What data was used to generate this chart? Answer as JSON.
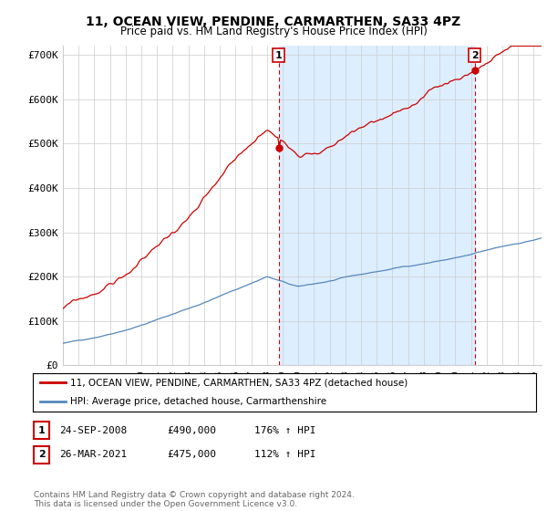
{
  "title": "11, OCEAN VIEW, PENDINE, CARMARTHEN, SA33 4PZ",
  "subtitle": "Price paid vs. HM Land Registry's House Price Index (HPI)",
  "ylim": [
    0,
    720000
  ],
  "yticks": [
    0,
    100000,
    200000,
    300000,
    400000,
    500000,
    600000,
    700000
  ],
  "ytick_labels": [
    "£0",
    "£100K",
    "£200K",
    "£300K",
    "£400K",
    "£500K",
    "£600K",
    "£700K"
  ],
  "red_color": "#cc0000",
  "blue_color": "#5588bb",
  "shade_color": "#ddeeff",
  "legend_line1": "11, OCEAN VIEW, PENDINE, CARMARTHEN, SA33 4PZ (detached house)",
  "legend_line2": "HPI: Average price, detached house, Carmarthenshire",
  "table_row1": [
    "1",
    "24-SEP-2008",
    "£490,000",
    "176% ↑ HPI"
  ],
  "table_row2": [
    "2",
    "26-MAR-2021",
    "£475,000",
    "112% ↑ HPI"
  ],
  "footnote": "Contains HM Land Registry data © Crown copyright and database right 2024.\nThis data is licensed under the Open Government Licence v3.0.",
  "background_color": "#ffffff",
  "grid_color": "#cccccc",
  "title_fontsize": 10,
  "subtitle_fontsize": 9,
  "sale_date1": 2008.75,
  "sale_date2": 2021.25,
  "sale_price1": 490000,
  "sale_price2": 475000,
  "xlim_left": 1995,
  "xlim_right": 2025.5
}
